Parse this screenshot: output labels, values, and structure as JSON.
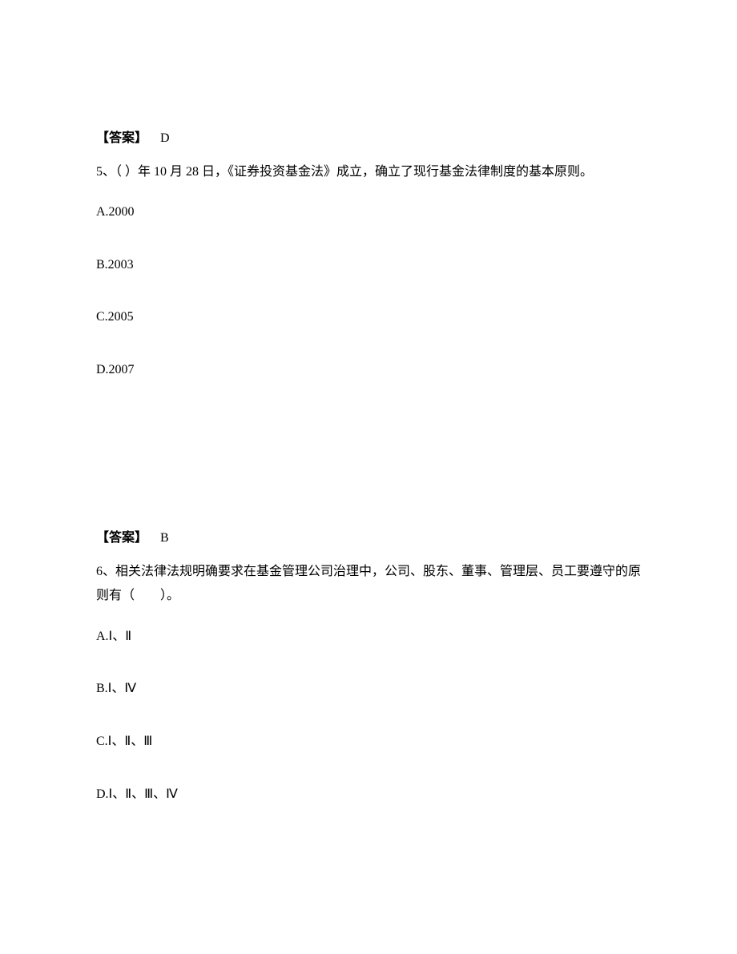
{
  "block1": {
    "answer_label": "【答案】",
    "answer_value": "D"
  },
  "q5": {
    "stem": "5、（ ）年 10 月 28 日，《证券投资基金法》成立，确立了现行基金法律制度的基本原则。",
    "options": {
      "a": "A.2000",
      "b": "B.2003",
      "c": "C.2005",
      "d": "D.2007"
    }
  },
  "block2": {
    "answer_label": "【答案】",
    "answer_value": "B"
  },
  "q6": {
    "stem": "6、相关法律法规明确要求在基金管理公司治理中，公司、股东、董事、管理层、员工要遵守的原则有（　　）。",
    "options": {
      "a": "A.Ⅰ、Ⅱ",
      "b": "B.Ⅰ、Ⅳ",
      "c": "C.Ⅰ、Ⅱ、Ⅲ",
      "d": "D.Ⅰ、Ⅱ、Ⅲ、Ⅳ"
    }
  }
}
